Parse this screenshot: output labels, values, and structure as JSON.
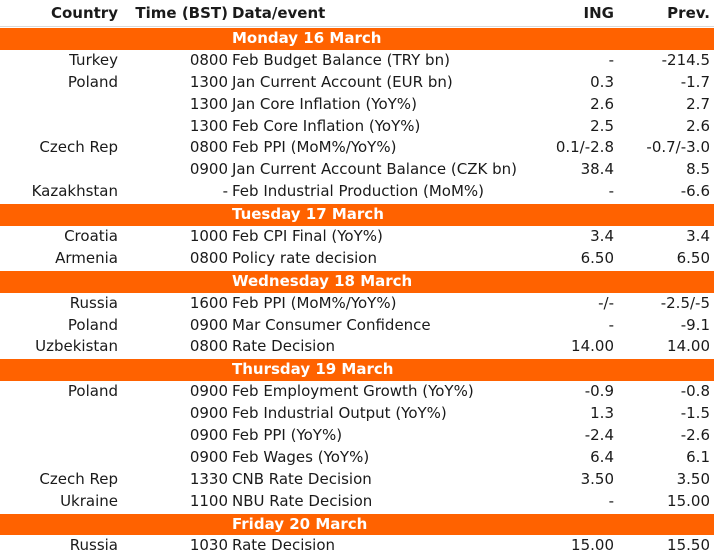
{
  "header": {
    "country": "Country",
    "time": "Time (BST)",
    "event": "Data/event",
    "ing": "ING",
    "prev": "Prev."
  },
  "rows": [
    {
      "day": "Monday 16 March"
    },
    {
      "country": "Turkey",
      "time": "0800",
      "event": "Feb Budget Balance (TRY bn)",
      "ing": "-",
      "prev": "-214.5"
    },
    {
      "country": "Poland",
      "time": "1300",
      "event": "Jan Current Account (EUR bn)",
      "ing": "0.3",
      "prev": "-1.7"
    },
    {
      "country": "",
      "time": "1300",
      "event": "Jan Core Inflation (YoY%)",
      "ing": "2.6",
      "prev": "2.7"
    },
    {
      "country": "",
      "time": "1300",
      "event": "Feb Core Inflation (YoY%)",
      "ing": "2.5",
      "prev": "2.6"
    },
    {
      "country": "Czech Rep",
      "time": "0800",
      "event": "Feb PPI (MoM%/YoY%)",
      "ing": "0.1/-2.8",
      "prev": "-0.7/-3.0"
    },
    {
      "country": "",
      "time": "0900",
      "event": "Jan Current Account Balance (CZK bn)",
      "ing": "38.4",
      "prev": "8.5"
    },
    {
      "country": "Kazakhstan",
      "time": "-",
      "event": "Feb Industrial Production (MoM%)",
      "ing": "-",
      "prev": "-6.6"
    },
    {
      "day": "Tuesday 17 March"
    },
    {
      "country": "Croatia",
      "time": "1000",
      "event": "Feb CPI Final (YoY%)",
      "ing": "3.4",
      "prev": "3.4"
    },
    {
      "country": "Armenia",
      "time": "0800",
      "event": "Policy rate decision",
      "ing": "6.50",
      "prev": "6.50"
    },
    {
      "day": "Wednesday 18 March"
    },
    {
      "country": "Russia",
      "time": "1600",
      "event": "Feb PPI (MoM%/YoY%)",
      "ing": "-/-",
      "prev": "-2.5/-5"
    },
    {
      "country": "Poland",
      "time": "0900",
      "event": "Mar Consumer Confidence",
      "ing": "-",
      "prev": "-9.1"
    },
    {
      "country": "Uzbekistan",
      "time": "0800",
      "event": "Rate Decision",
      "ing": "14.00",
      "prev": "14.00"
    },
    {
      "day": "Thursday 19 March"
    },
    {
      "country": "Poland",
      "time": "0900",
      "event": "Feb Employment Growth (YoY%)",
      "ing": "-0.9",
      "prev": "-0.8"
    },
    {
      "country": "",
      "time": "0900",
      "event": "Feb Industrial Output (YoY%)",
      "ing": "1.3",
      "prev": "-1.5"
    },
    {
      "country": "",
      "time": "0900",
      "event": "Feb PPI (YoY%)",
      "ing": "-2.4",
      "prev": "-2.6"
    },
    {
      "country": "",
      "time": "0900",
      "event": "Feb Wages (YoY%)",
      "ing": "6.4",
      "prev": "6.1"
    },
    {
      "country": "Czech Rep",
      "time": "1330",
      "event": "CNB Rate Decision",
      "ing": "3.50",
      "prev": "3.50"
    },
    {
      "country": "Ukraine",
      "time": "1100",
      "event": "NBU Rate Decision",
      "ing": "-",
      "prev": "15.00"
    },
    {
      "day": "Friday 20 March"
    },
    {
      "country": "Russia",
      "time": "1030",
      "event": "Rate Decision",
      "ing": "15.00",
      "prev": "15.50"
    }
  ],
  "colors": {
    "accent": "#ff6200",
    "text": "#1a1a1a",
    "background": "#ffffff"
  }
}
